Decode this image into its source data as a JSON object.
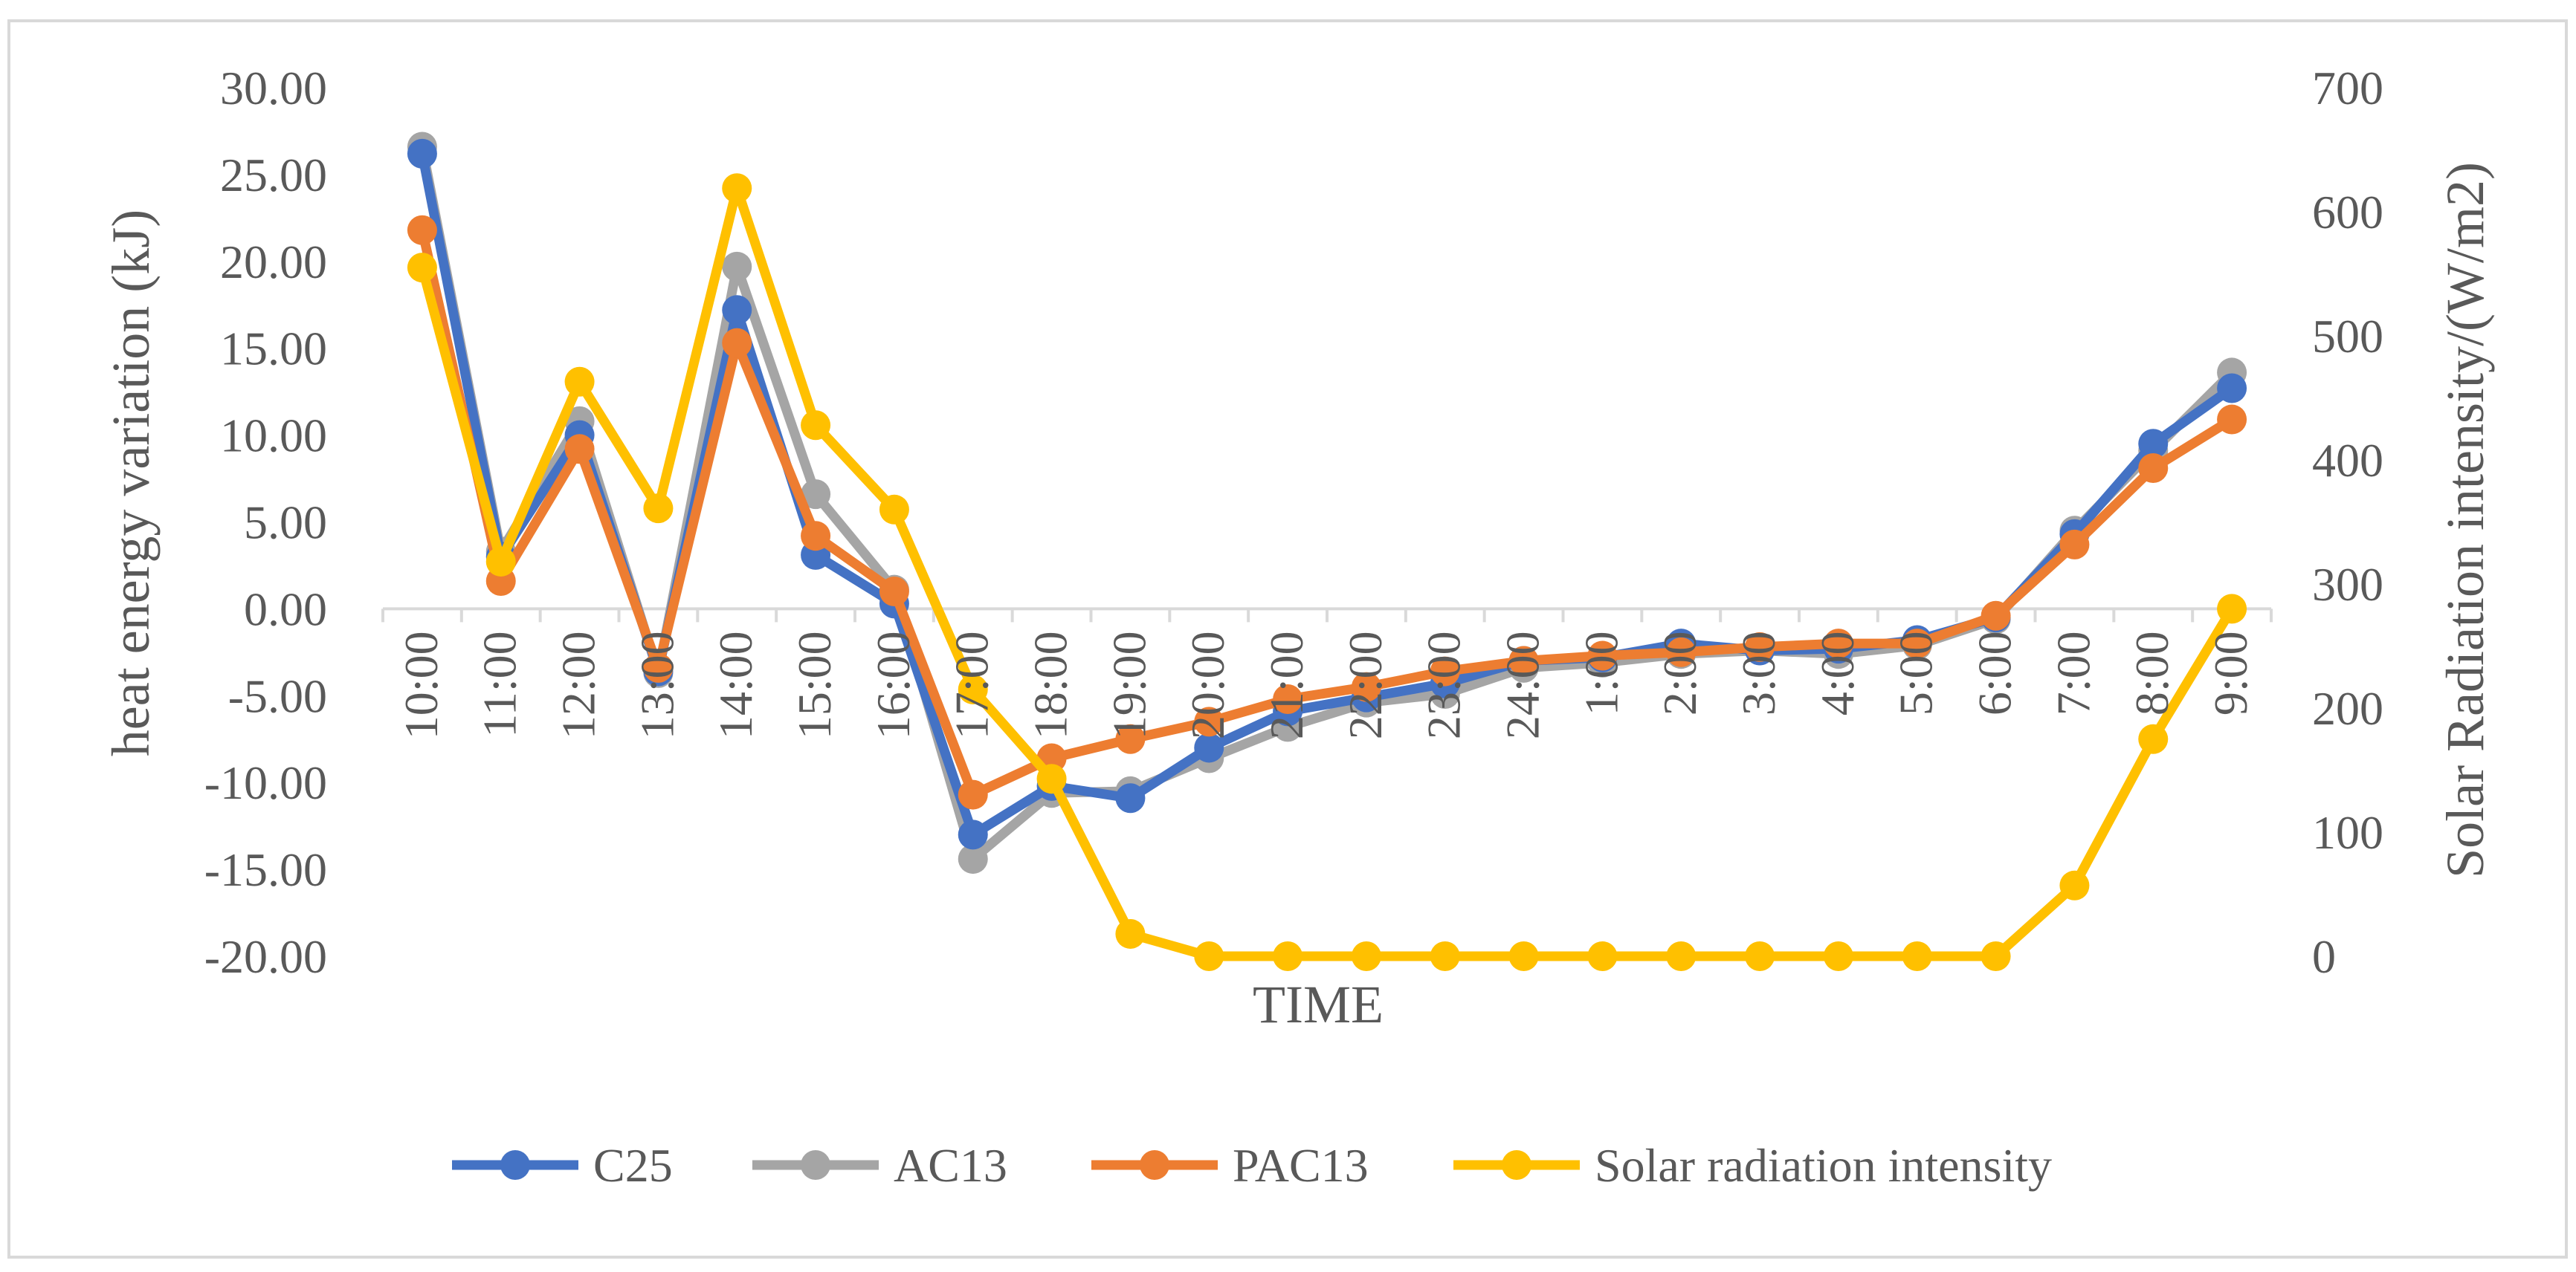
{
  "chart_data": {
    "type": "line",
    "title": "",
    "xlabel": "TIME",
    "ylabel": "heat energy variation (kJ)",
    "y2label": "Solar Radiation intensity/(W/m2)",
    "ylim": [
      -20,
      30
    ],
    "y2lim": [
      0,
      700
    ],
    "yticks": [
      "30.00",
      "25.00",
      "20.00",
      "15.00",
      "10.00",
      "5.00",
      "0.00",
      "-5.00",
      "-10.00",
      "-15.00",
      "-20.00"
    ],
    "y2ticks": [
      "700",
      "600",
      "500",
      "400",
      "300",
      "200",
      "100",
      "0"
    ],
    "categories": [
      "10:00",
      "11:00",
      "12:00",
      "13:00",
      "14:00",
      "15:00",
      "16:00",
      "17:00",
      "18:00",
      "19:00",
      "20:00",
      "21:00",
      "22:00",
      "23:00",
      "24:00",
      "1:00",
      "2:00",
      "3:00",
      "4:00",
      "5:00",
      "6:00",
      "7:00",
      "8:00",
      "9:00"
    ],
    "series": [
      {
        "name": "C25",
        "axis": "left",
        "color": "#4472C4",
        "values": [
          26.2,
          3.0,
          10.0,
          -3.6,
          17.2,
          3.1,
          0.3,
          -13.0,
          -10.2,
          -10.9,
          -8.0,
          -5.9,
          -5.1,
          -4.3,
          -3.0,
          -2.8,
          -2.0,
          -2.4,
          -2.3,
          -1.8,
          -0.5,
          4.3,
          9.5,
          12.7
        ]
      },
      {
        "name": "AC13",
        "axis": "left",
        "color": "#A5A5A5",
        "values": [
          26.6,
          3.3,
          10.8,
          -3.7,
          19.7,
          6.6,
          1.1,
          -14.4,
          -10.6,
          -10.5,
          -8.6,
          -6.8,
          -5.4,
          -4.9,
          -3.4,
          -3.1,
          -2.6,
          -2.4,
          -2.6,
          -2.1,
          -0.6,
          4.5,
          9.1,
          13.6
        ]
      },
      {
        "name": "PAC13",
        "axis": "left",
        "color": "#ED7D31",
        "values": [
          21.8,
          1.6,
          9.2,
          -3.4,
          15.3,
          4.2,
          1.0,
          -10.7,
          -8.6,
          -7.5,
          -6.5,
          -5.2,
          -4.5,
          -3.6,
          -3.0,
          -2.7,
          -2.5,
          -2.2,
          -2.0,
          -2.0,
          -0.4,
          3.7,
          8.1,
          10.9
        ]
      },
      {
        "name": "Solar radiation intensity",
        "axis": "right",
        "color": "#FFC000",
        "values": [
          555,
          318,
          463,
          361,
          619,
          428,
          360,
          215,
          143,
          18,
          0,
          0,
          0,
          0,
          0,
          0,
          0,
          0,
          0,
          0,
          0,
          57,
          175,
          280
        ]
      }
    ],
    "legend_position": "bottom",
    "grid": false
  }
}
